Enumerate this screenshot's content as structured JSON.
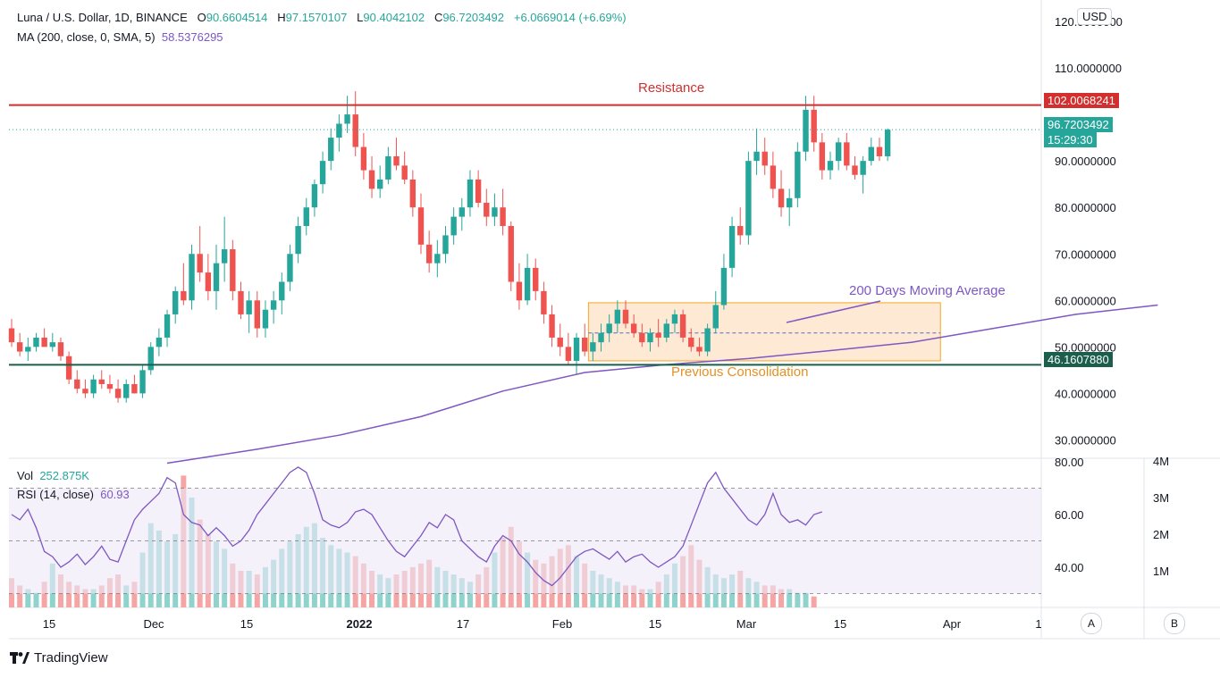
{
  "header": {
    "symbol": "Luna / U.S. Dollar, 1D, BINANCE",
    "open_label": "O",
    "open": "90.6604514",
    "high_label": "H",
    "high": "97.1570107",
    "low_label": "L",
    "low": "90.4042102",
    "close_label": "C",
    "close": "96.7203492",
    "change": "+6.0669014 (+6.69%)",
    "ma_label": "MA (200, close, 0, SMA, 5)",
    "ma_value": "58.5376295"
  },
  "lower": {
    "vol_label": "Vol",
    "vol_value": "252.875K",
    "rsi_label": "RSI (14, close)",
    "rsi_value": "60.93"
  },
  "currency": "USD",
  "price_badges": {
    "resistance": "102.0068241",
    "last": "96.7203492",
    "countdown": "15:29:30",
    "support": "46.1607880"
  },
  "annotations": {
    "resistance": "Resistance",
    "ma": "200 Days Moving Average",
    "consolidation": "Previous Consolidation"
  },
  "x_ticks": [
    "15",
    "Dec",
    "15",
    "2022",
    "17",
    "Feb",
    "15",
    "Mar",
    "15",
    "Apr",
    "1"
  ],
  "branding": "TradingView",
  "buttons": {
    "a": "A",
    "b": "B"
  },
  "colors": {
    "up": "#26a69a",
    "down": "#ef5350",
    "ma": "#7e57c2",
    "resistance": "#d32f2f",
    "support": "#1b5e4b",
    "box": "#f5a623"
  },
  "chart_data": [
    {
      "type": "candlestick",
      "title": "Luna / U.S. Dollar, 1D, BINANCE",
      "ylim": [
        25,
        122
      ],
      "y_ticks": [
        30,
        40,
        50,
        60,
        70,
        80,
        90,
        110,
        120
      ],
      "y_tick_labels": [
        "30.0000000",
        "40.0000000",
        "50.0000000",
        "60.0000000",
        "70.0000000",
        "80.0000000",
        "90.0000000",
        "110.0000000",
        "120.0000000"
      ],
      "horizontal_lines": [
        {
          "name": "Resistance",
          "value": 102.0068241
        },
        {
          "name": "support",
          "value": 46.160788
        },
        {
          "name": "last price",
          "value": 96.7203492
        }
      ],
      "consolidation_box": {
        "x_start": 71,
        "x_end": 114,
        "top": 59.5,
        "bottom": 47,
        "mid": 53
      },
      "ma200": [
        [
          19,
          25
        ],
        [
          30,
          28
        ],
        [
          40,
          31
        ],
        [
          50,
          35
        ],
        [
          60,
          40.5
        ],
        [
          70,
          44.5
        ],
        [
          80,
          46.2
        ],
        [
          90,
          47.5
        ],
        [
          100,
          49.2
        ],
        [
          110,
          51
        ],
        [
          120,
          54
        ],
        [
          130,
          57
        ],
        [
          140,
          59
        ]
      ],
      "candles": [
        [
          0,
          54,
          56,
          50,
          51
        ],
        [
          1,
          51,
          53,
          48,
          49
        ],
        [
          2,
          49,
          52,
          47,
          50
        ],
        [
          3,
          50,
          53,
          49,
          52
        ],
        [
          4,
          52,
          54,
          50,
          50
        ],
        [
          5,
          50,
          53,
          49,
          51
        ],
        [
          6,
          51,
          52,
          47,
          48
        ],
        [
          7,
          48,
          49,
          42,
          43
        ],
        [
          8,
          43,
          45,
          40,
          41
        ],
        [
          9,
          41,
          43,
          39,
          40
        ],
        [
          10,
          40,
          44,
          39,
          43
        ],
        [
          11,
          43,
          45,
          41,
          42
        ],
        [
          12,
          42,
          44,
          40,
          41
        ],
        [
          13,
          41,
          43,
          38,
          39
        ],
        [
          14,
          39,
          43,
          38,
          42
        ],
        [
          15,
          42,
          44,
          40,
          40
        ],
        [
          16,
          40,
          46,
          39,
          45
        ],
        [
          17,
          45,
          51,
          44,
          50
        ],
        [
          18,
          50,
          54,
          48,
          52
        ],
        [
          19,
          52,
          58,
          50,
          57
        ],
        [
          20,
          57,
          63,
          55,
          62
        ],
        [
          21,
          62,
          68,
          59,
          60
        ],
        [
          22,
          60,
          72,
          58,
          70
        ],
        [
          23,
          70,
          76,
          64,
          66
        ],
        [
          24,
          66,
          70,
          60,
          62
        ],
        [
          25,
          62,
          72,
          58,
          68
        ],
        [
          26,
          68,
          78,
          64,
          71
        ],
        [
          27,
          71,
          73,
          60,
          62
        ],
        [
          28,
          62,
          64,
          56,
          57
        ],
        [
          29,
          57,
          62,
          53,
          60
        ],
        [
          30,
          60,
          62,
          52,
          54
        ],
        [
          31,
          54,
          60,
          52,
          58
        ],
        [
          32,
          58,
          62,
          55,
          60
        ],
        [
          33,
          60,
          66,
          57,
          64
        ],
        [
          34,
          64,
          72,
          62,
          70
        ],
        [
          35,
          70,
          78,
          68,
          76
        ],
        [
          36,
          76,
          82,
          74,
          80
        ],
        [
          37,
          80,
          86,
          78,
          85
        ],
        [
          38,
          85,
          92,
          83,
          90
        ],
        [
          39,
          90,
          97,
          88,
          95
        ],
        [
          40,
          95,
          100,
          92,
          98
        ],
        [
          41,
          98,
          104,
          96,
          100
        ],
        [
          42,
          100,
          105,
          91,
          93
        ],
        [
          43,
          93,
          96,
          86,
          88
        ],
        [
          44,
          88,
          91,
          82,
          84
        ],
        [
          45,
          84,
          89,
          82,
          86
        ],
        [
          46,
          86,
          93,
          85,
          91
        ],
        [
          47,
          91,
          95,
          88,
          89
        ],
        [
          48,
          89,
          92,
          85,
          86
        ],
        [
          49,
          86,
          88,
          78,
          80
        ],
        [
          50,
          80,
          83,
          70,
          72
        ],
        [
          51,
          72,
          75,
          66,
          68
        ],
        [
          52,
          68,
          73,
          65,
          70
        ],
        [
          53,
          70,
          76,
          68,
          74
        ],
        [
          54,
          74,
          80,
          72,
          78
        ],
        [
          55,
          78,
          82,
          75,
          80
        ],
        [
          56,
          80,
          88,
          78,
          86
        ],
        [
          57,
          86,
          88,
          80,
          81
        ],
        [
          58,
          81,
          84,
          76,
          78
        ],
        [
          59,
          78,
          83,
          76,
          80
        ],
        [
          60,
          80,
          84,
          74,
          76
        ],
        [
          61,
          76,
          77,
          62,
          64
        ],
        [
          62,
          64,
          68,
          58,
          60
        ],
        [
          63,
          60,
          70,
          59,
          67
        ],
        [
          64,
          67,
          69,
          60,
          62
        ],
        [
          65,
          62,
          64,
          55,
          57
        ],
        [
          66,
          57,
          59,
          50,
          52
        ],
        [
          67,
          52,
          55,
          48,
          50
        ],
        [
          68,
          50,
          53,
          46,
          47
        ],
        [
          69,
          47,
          53,
          44,
          52
        ],
        [
          70,
          52,
          55,
          48,
          49
        ],
        [
          71,
          49,
          53,
          47,
          51
        ],
        [
          72,
          51,
          55,
          49,
          53
        ],
        [
          73,
          53,
          57,
          51,
          55
        ],
        [
          74,
          55,
          60,
          53,
          58
        ],
        [
          75,
          58,
          60,
          54,
          55
        ],
        [
          76,
          55,
          57,
          52,
          53
        ],
        [
          77,
          53,
          55,
          50,
          51
        ],
        [
          78,
          51,
          54,
          49,
          53
        ],
        [
          79,
          53,
          56,
          50,
          52
        ],
        [
          80,
          52,
          56,
          51,
          55
        ],
        [
          81,
          55,
          58,
          53,
          57
        ],
        [
          82,
          57,
          58,
          51,
          52
        ],
        [
          83,
          52,
          54,
          49,
          50
        ],
        [
          84,
          50,
          52,
          48,
          49
        ],
        [
          85,
          49,
          55,
          48,
          54
        ],
        [
          86,
          54,
          62,
          53,
          59
        ],
        [
          87,
          59,
          70,
          58,
          67
        ],
        [
          88,
          67,
          78,
          65,
          76
        ],
        [
          89,
          76,
          80,
          72,
          74
        ],
        [
          90,
          74,
          92,
          72,
          90
        ],
        [
          91,
          90,
          97,
          87,
          92
        ],
        [
          92,
          92,
          95,
          87,
          89
        ],
        [
          93,
          89,
          92,
          82,
          84
        ],
        [
          94,
          84,
          88,
          78,
          80
        ],
        [
          95,
          80,
          84,
          76,
          82
        ],
        [
          96,
          82,
          94,
          80,
          92
        ],
        [
          97,
          92,
          104,
          90,
          101
        ],
        [
          98,
          101,
          104,
          92,
          94
        ],
        [
          99,
          94,
          96,
          86,
          88
        ],
        [
          100,
          88,
          92,
          86,
          90
        ],
        [
          101,
          90,
          95,
          88,
          94
        ],
        [
          102,
          94,
          96,
          88,
          89
        ],
        [
          103,
          89,
          91,
          86,
          87
        ],
        [
          104,
          87,
          91,
          83,
          90
        ],
        [
          105,
          90,
          95,
          89,
          93
        ],
        [
          106,
          93,
          95,
          90,
          91
        ],
        [
          107,
          91,
          97,
          90,
          96.72
        ]
      ]
    },
    {
      "type": "line",
      "name": "RSI (14, close)",
      "ylim": [
        20,
        82
      ],
      "y_ticks": [
        40,
        60,
        80
      ],
      "y_tick_labels": [
        "40.00",
        "60.00",
        "80.00"
      ],
      "bands": [
        30,
        50,
        70
      ],
      "series": [
        {
          "values": [
            60,
            58,
            62,
            55,
            46,
            44,
            40,
            42,
            45,
            41,
            44,
            48,
            43,
            42,
            50,
            58,
            62,
            65,
            68,
            74,
            72,
            60,
            57,
            56,
            52,
            55,
            52,
            48,
            50,
            54,
            60,
            64,
            68,
            72,
            76,
            78,
            76,
            68,
            58,
            56,
            55,
            57,
            61,
            62,
            60,
            55,
            50,
            46,
            44,
            48,
            52,
            57,
            55,
            60,
            58,
            50,
            47,
            44,
            42,
            48,
            52,
            50,
            45,
            42,
            38,
            35,
            33,
            36,
            40,
            44,
            46,
            47,
            45,
            43,
            46,
            42,
            44,
            45,
            42,
            40,
            42,
            44,
            48,
            56,
            64,
            72,
            76,
            70,
            66,
            62,
            58,
            56,
            60,
            68,
            60,
            57,
            58,
            56,
            60,
            61
          ]
        }
      ]
    },
    {
      "type": "bar",
      "name": "Vol",
      "y_ticks": [
        1,
        2,
        3,
        4
      ],
      "y_tick_labels": [
        "1M",
        "2M",
        "3M",
        "4M"
      ],
      "values": [
        0.8,
        0.6,
        0.5,
        0.4,
        0.7,
        1.2,
        0.9,
        0.7,
        0.6,
        0.5,
        0.5,
        0.6,
        0.8,
        0.9,
        0.6,
        0.7,
        1.5,
        2.3,
        2.1,
        1.8,
        2.0,
        3.6,
        3.0,
        2.4,
        2.0,
        1.8,
        1.6,
        1.2,
        1.0,
        1.0,
        0.9,
        1.1,
        1.3,
        1.6,
        1.8,
        2.0,
        2.2,
        2.3,
        1.9,
        1.7,
        1.6,
        1.5,
        1.4,
        1.2,
        1.0,
        0.9,
        0.8,
        0.9,
        1.0,
        1.1,
        1.2,
        1.3,
        1.1,
        1.0,
        0.9,
        0.8,
        0.7,
        0.9,
        1.1,
        1.5,
        1.9,
        2.2,
        1.8,
        1.5,
        1.3,
        1.2,
        1.4,
        1.6,
        1.7,
        1.4,
        1.2,
        1.0,
        0.9,
        0.8,
        0.7,
        0.6,
        0.6,
        0.5,
        0.5,
        0.7,
        0.9,
        1.2,
        1.4,
        1.7,
        1.3,
        1.1,
        0.9,
        0.8,
        0.9,
        1.0,
        0.8,
        0.7,
        0.6,
        0.6,
        0.5,
        0.5,
        0.4,
        0.4,
        0.3
      ]
    }
  ]
}
